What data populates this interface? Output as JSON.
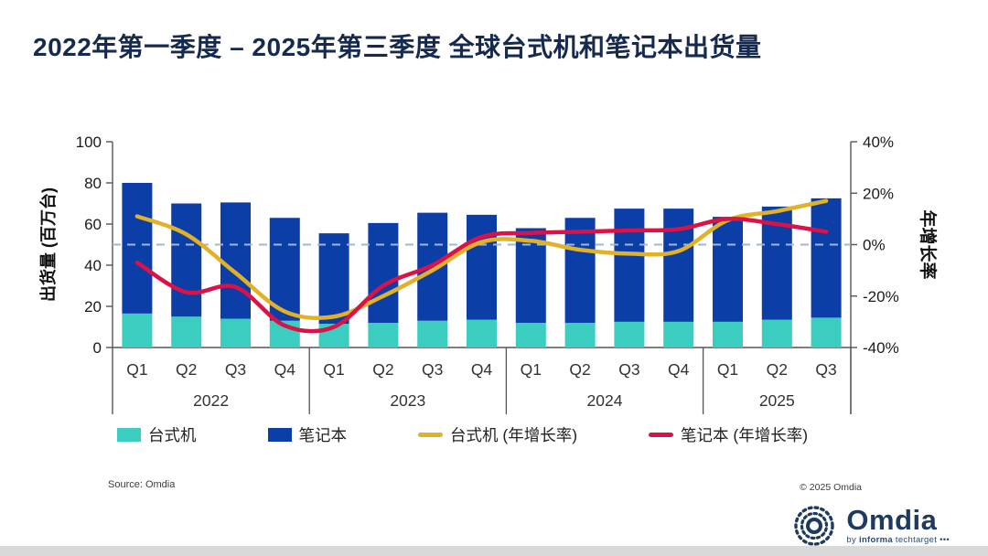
{
  "page": {
    "source_note": "Source: Omdia",
    "copyright": "© 2025 Omdia",
    "logo": {
      "brand": "Omdia",
      "tagline_by": "by",
      "tagline_informa": "informa",
      "tagline_rest": "techtarget",
      "tagline_dots": "•••"
    }
  },
  "chart_data": {
    "type": "combo-stacked-bar-line",
    "title": "2022年第一季度 – 2025年第三季度 全球台式机和笔记本出货量",
    "x_groups": [
      {
        "year": "2022",
        "quarters": [
          "Q1",
          "Q2",
          "Q3",
          "Q4"
        ]
      },
      {
        "year": "2023",
        "quarters": [
          "Q1",
          "Q2",
          "Q3",
          "Q4"
        ]
      },
      {
        "year": "2024",
        "quarters": [
          "Q1",
          "Q2",
          "Q3",
          "Q4"
        ]
      },
      {
        "year": "2025",
        "quarters": [
          "Q1",
          "Q2",
          "Q3"
        ]
      }
    ],
    "left_axis": {
      "label": "出货量 (百万台)",
      "min": 0,
      "max": 100,
      "step": 20
    },
    "right_axis": {
      "label": "年增长率",
      "min": -40,
      "max": 40,
      "step": 20,
      "unit": "%"
    },
    "zero_reference_line": {
      "axis": "right",
      "value": 0,
      "style": "dashed",
      "color": "#9FB9CF"
    },
    "legend_position": "bottom",
    "grid": "off",
    "series": [
      {
        "name": "台式机",
        "type": "bar",
        "stack": "shipments",
        "unit": "百万台",
        "color": "#3BCEC0",
        "values": [
          16.5,
          15,
          14,
          13,
          11.5,
          12,
          13,
          13.5,
          12,
          12,
          12.5,
          12.5,
          12.5,
          13.5,
          14.5
        ]
      },
      {
        "name": "笔记本",
        "type": "bar",
        "stack": "shipments",
        "unit": "百万台",
        "color": "#0C3EA8",
        "values": [
          63.5,
          55,
          56.5,
          50,
          44,
          48.5,
          52.5,
          51,
          46,
          51,
          55,
          55,
          51,
          55,
          58
        ]
      },
      {
        "name": "台式机 (年增长率)",
        "type": "line",
        "axis": "right",
        "unit": "%",
        "color": "#E2B127",
        "values": [
          11,
          4,
          -11,
          -26,
          -28,
          -20,
          -10,
          1,
          1.5,
          -2,
          -3.5,
          -2.5,
          9.5,
          13,
          17
        ]
      },
      {
        "name": "笔记本 (年增长率)",
        "type": "line",
        "axis": "right",
        "unit": "%",
        "color": "#DB1148",
        "values": [
          -7,
          -18.5,
          -16.5,
          -31.5,
          -32,
          -16,
          -8,
          3,
          4.5,
          5,
          5.5,
          6,
          10,
          8,
          5
        ]
      }
    ]
  }
}
